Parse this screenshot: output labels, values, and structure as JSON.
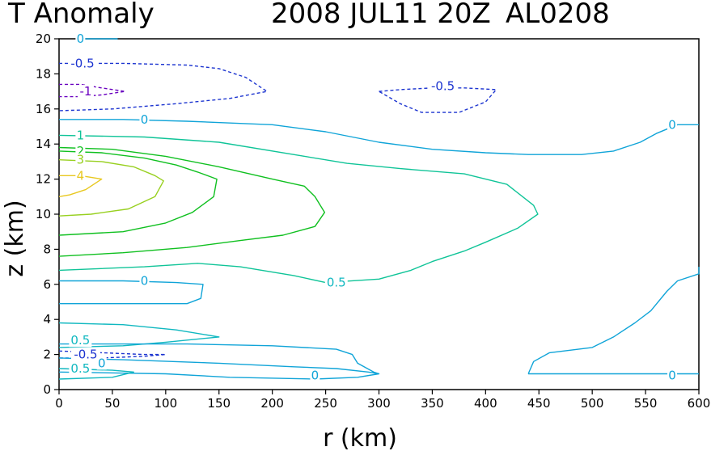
{
  "chart_data": {
    "type": "contour",
    "title": "T Anomaly",
    "title_date": "2008 JUL11 20Z",
    "title_storm": "AL0208",
    "xlabel": "r (km)",
    "ylabel": "z (km)",
    "xlim": [
      0,
      600
    ],
    "ylim": [
      0,
      20
    ],
    "xticks": [
      0,
      50,
      100,
      150,
      200,
      250,
      300,
      350,
      400,
      450,
      500,
      550,
      600
    ],
    "yticks": [
      0,
      2,
      4,
      6,
      8,
      10,
      12,
      14,
      16,
      18,
      20
    ],
    "grid": false,
    "colors": {
      "neg1": "#6a00c0",
      "neg05": "#1c34d0",
      "zero": "#10a4d8",
      "pos05": "#10b8c0",
      "pos1": "#10c498",
      "pos2": "#10c020",
      "pos3": "#98d020",
      "pos4": "#e8c820"
    },
    "contours": [
      {
        "level": "0",
        "color": "zero",
        "dashed": false,
        "points": [
          [
            20,
            20
          ],
          [
            40,
            20
          ],
          [
            55,
            20
          ]
        ]
      },
      {
        "level": "-0.5",
        "color": "neg05",
        "dashed": true,
        "points": [
          [
            0,
            18.6
          ],
          [
            60,
            18.6
          ],
          [
            120,
            18.5
          ],
          [
            150,
            18.3
          ],
          [
            175,
            17.8
          ],
          [
            195,
            17.0
          ],
          [
            160,
            16.6
          ],
          [
            110,
            16.3
          ],
          [
            50,
            16.0
          ],
          [
            0,
            15.9
          ]
        ]
      },
      {
        "level": "-1",
        "color": "neg1",
        "dashed": true,
        "points": [
          [
            0,
            17.4
          ],
          [
            20,
            17.4
          ],
          [
            40,
            17.2
          ],
          [
            62,
            17.0
          ],
          [
            40,
            16.8
          ],
          [
            20,
            16.7
          ],
          [
            0,
            16.7
          ]
        ]
      },
      {
        "level": "-0.5",
        "color": "neg05",
        "dashed": true,
        "points": [
          [
            300,
            17.0
          ],
          [
            320,
            17.1
          ],
          [
            350,
            17.2
          ],
          [
            380,
            17.2
          ],
          [
            410,
            17.1
          ],
          [
            400,
            16.4
          ],
          [
            375,
            15.8
          ],
          [
            340,
            15.8
          ],
          [
            320,
            16.3
          ],
          [
            300,
            17.0
          ]
        ]
      },
      {
        "level": "0",
        "color": "zero",
        "dashed": false,
        "points": [
          [
            0,
            15.4
          ],
          [
            60,
            15.4
          ],
          [
            120,
            15.3
          ],
          [
            200,
            15.1
          ],
          [
            250,
            14.7
          ],
          [
            300,
            14.1
          ],
          [
            350,
            13.7
          ],
          [
            400,
            13.5
          ],
          [
            440,
            13.4
          ],
          [
            490,
            13.4
          ],
          [
            520,
            13.6
          ],
          [
            545,
            14.1
          ],
          [
            560,
            14.6
          ],
          [
            580,
            15.1
          ],
          [
            600,
            15.1
          ]
        ]
      },
      {
        "level": "1",
        "color": "pos1",
        "dashed": false,
        "points": [
          [
            0,
            14.5
          ],
          [
            80,
            14.4
          ],
          [
            150,
            14.1
          ],
          [
            220,
            13.4
          ],
          [
            270,
            12.9
          ],
          [
            320,
            12.6
          ],
          [
            380,
            12.3
          ],
          [
            420,
            11.7
          ],
          [
            445,
            10.5
          ],
          [
            449,
            10.0
          ],
          [
            430,
            9.2
          ],
          [
            400,
            8.4
          ],
          [
            380,
            7.9
          ],
          [
            350,
            7.3
          ],
          [
            330,
            6.8
          ],
          [
            300,
            6.3
          ],
          [
            250,
            6.1
          ],
          [
            220,
            6.5
          ],
          [
            170,
            7.0
          ],
          [
            130,
            7.2
          ],
          [
            80,
            7.0
          ],
          [
            0,
            6.8
          ]
        ]
      },
      {
        "level": "2",
        "color": "pos2",
        "dashed": false,
        "points": [
          [
            0,
            13.8
          ],
          [
            50,
            13.7
          ],
          [
            100,
            13.3
          ],
          [
            150,
            12.7
          ],
          [
            200,
            12.0
          ],
          [
            230,
            11.6
          ],
          [
            240,
            11.0
          ],
          [
            249,
            10.1
          ],
          [
            240,
            9.3
          ],
          [
            210,
            8.8
          ],
          [
            170,
            8.5
          ],
          [
            120,
            8.1
          ],
          [
            60,
            7.8
          ],
          [
            0,
            7.6
          ]
        ]
      },
      {
        "level": "2",
        "color": "pos2",
        "dashed": false,
        "points": [
          [
            0,
            13.6
          ],
          [
            40,
            13.5
          ],
          [
            80,
            13.2
          ],
          [
            110,
            12.8
          ],
          [
            130,
            12.4
          ],
          [
            148,
            12.0
          ],
          [
            145,
            11.0
          ],
          [
            125,
            10.1
          ],
          [
            100,
            9.5
          ],
          [
            60,
            9.0
          ],
          [
            0,
            8.8
          ]
        ]
      },
      {
        "level": "3",
        "color": "pos3",
        "dashed": false,
        "points": [
          [
            0,
            13.1
          ],
          [
            40,
            13.0
          ],
          [
            70,
            12.7
          ],
          [
            90,
            12.2
          ],
          [
            98,
            11.9
          ],
          [
            90,
            11.0
          ],
          [
            65,
            10.3
          ],
          [
            30,
            10.0
          ],
          [
            0,
            9.9
          ]
        ]
      },
      {
        "level": "4",
        "color": "pos4",
        "dashed": false,
        "points": [
          [
            0,
            12.2
          ],
          [
            20,
            12.2
          ],
          [
            40,
            12.0
          ],
          [
            25,
            11.4
          ],
          [
            10,
            11.1
          ],
          [
            0,
            11.0
          ]
        ]
      },
      {
        "level": "0",
        "color": "zero",
        "dashed": false,
        "points": [
          [
            0,
            6.2
          ],
          [
            60,
            6.2
          ],
          [
            110,
            6.1
          ],
          [
            135,
            6.0
          ],
          [
            133,
            5.2
          ],
          [
            120,
            4.9
          ],
          [
            60,
            4.9
          ],
          [
            0,
            4.9
          ]
        ]
      },
      {
        "level": "0.5",
        "color": "pos05",
        "dashed": false,
        "points": [
          [
            0,
            3.8
          ],
          [
            60,
            3.7
          ],
          [
            110,
            3.4
          ],
          [
            150,
            3.0
          ],
          [
            100,
            2.7
          ],
          [
            60,
            2.5
          ],
          [
            0,
            2.4
          ]
        ]
      },
      {
        "level": "-0.5",
        "color": "neg05",
        "dashed": true,
        "points": [
          [
            0,
            2.2
          ],
          [
            40,
            2.1
          ],
          [
            80,
            2.0
          ],
          [
            100,
            2.0
          ],
          [
            80,
            1.9
          ],
          [
            40,
            1.8
          ],
          [
            0,
            1.8
          ]
        ]
      },
      {
        "level": "0",
        "color": "zero",
        "dashed": false,
        "points": [
          [
            0,
            1.8
          ],
          [
            60,
            1.7
          ],
          [
            150,
            1.5
          ],
          [
            220,
            1.3
          ],
          [
            260,
            1.2
          ],
          [
            290,
            1.0
          ],
          [
            300,
            0.9
          ],
          [
            280,
            0.7
          ],
          [
            240,
            0.6
          ],
          [
            160,
            0.7
          ],
          [
            100,
            0.9
          ],
          [
            0,
            1.0
          ]
        ]
      },
      {
        "level": "0.5",
        "color": "pos05",
        "dashed": false,
        "points": [
          [
            0,
            1.2
          ],
          [
            50,
            1.1
          ],
          [
            70,
            1.0
          ],
          [
            50,
            0.7
          ],
          [
            0,
            0.6
          ]
        ]
      },
      {
        "level": "0",
        "color": "zero",
        "dashed": false,
        "points": [
          [
            0,
            2.6
          ],
          [
            120,
            2.6
          ],
          [
            200,
            2.5
          ],
          [
            260,
            2.3
          ],
          [
            275,
            2.0
          ],
          [
            280,
            1.5
          ],
          [
            295,
            1.0
          ],
          [
            300,
            0.9
          ]
        ]
      },
      {
        "level": "0",
        "color": "zero",
        "dashed": false,
        "points": [
          [
            440,
            0.9
          ],
          [
            445,
            1.6
          ],
          [
            460,
            2.1
          ],
          [
            500,
            2.4
          ],
          [
            520,
            3.0
          ],
          [
            540,
            3.8
          ],
          [
            555,
            4.5
          ],
          [
            570,
            5.6
          ],
          [
            580,
            6.2
          ],
          [
            600,
            6.6
          ],
          [
            600,
            7.0
          ]
        ]
      },
      {
        "level": "0",
        "color": "zero",
        "dashed": false,
        "points": [
          [
            440,
            0.9
          ],
          [
            480,
            0.9
          ],
          [
            540,
            0.9
          ],
          [
            580,
            0.9
          ],
          [
            600,
            0.9
          ]
        ]
      }
    ],
    "labels": [
      {
        "text": "0",
        "x": 20,
        "y": 20,
        "color": "zero"
      },
      {
        "text": "-0.5",
        "x": 22,
        "y": 18.6,
        "color": "neg05"
      },
      {
        "text": "-1",
        "x": 25,
        "y": 17.0,
        "color": "neg1"
      },
      {
        "text": "-0.5",
        "x": 360,
        "y": 17.3,
        "color": "neg05"
      },
      {
        "text": "0",
        "x": 80,
        "y": 15.4,
        "color": "zero"
      },
      {
        "text": "1",
        "x": 20,
        "y": 14.5,
        "color": "pos1"
      },
      {
        "text": "2",
        "x": 20,
        "y": 13.6,
        "color": "pos2"
      },
      {
        "text": "3",
        "x": 20,
        "y": 13.1,
        "color": "pos3"
      },
      {
        "text": "4",
        "x": 20,
        "y": 12.2,
        "color": "pos4"
      },
      {
        "text": "0",
        "x": 80,
        "y": 6.2,
        "color": "zero"
      },
      {
        "text": "0.5",
        "x": 260,
        "y": 6.1,
        "color": "pos05"
      },
      {
        "text": "0.5",
        "x": 20,
        "y": 2.8,
        "color": "pos05"
      },
      {
        "text": "-0.5",
        "x": 25,
        "y": 2.0,
        "color": "neg05"
      },
      {
        "text": "0",
        "x": 40,
        "y": 1.5,
        "color": "zero"
      },
      {
        "text": "0.5",
        "x": 20,
        "y": 1.2,
        "color": "pos05"
      },
      {
        "text": "0",
        "x": 240,
        "y": 0.8,
        "color": "zero"
      },
      {
        "text": "0",
        "x": 575,
        "y": 15.1,
        "color": "zero"
      },
      {
        "text": "0",
        "x": 575,
        "y": 0.8,
        "color": "zero"
      }
    ]
  }
}
